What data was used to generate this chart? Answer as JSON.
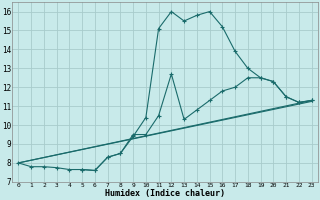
{
  "xlabel": "Humidex (Indice chaleur)",
  "background_color": "#c8eaea",
  "grid_color": "#a8cccc",
  "line_color": "#1a6b6b",
  "xlim": [
    -0.5,
    23.5
  ],
  "ylim": [
    7,
    16.5
  ],
  "xtick_vals": [
    0,
    1,
    2,
    3,
    4,
    5,
    6,
    7,
    8,
    9,
    10,
    11,
    12,
    13,
    14,
    15,
    16,
    17,
    18,
    19,
    20,
    21,
    22,
    23
  ],
  "ytick_vals": [
    7,
    8,
    9,
    10,
    11,
    12,
    13,
    14,
    15,
    16
  ],
  "curve1_x": [
    0,
    1,
    2,
    3,
    4,
    5,
    6,
    7,
    8,
    9,
    10,
    11,
    12,
    13,
    14,
    15,
    16,
    17,
    18,
    19,
    20,
    21,
    22,
    23
  ],
  "curve1_y": [
    8.0,
    7.8,
    7.8,
    7.75,
    7.65,
    7.65,
    7.6,
    8.3,
    8.5,
    9.4,
    10.4,
    15.1,
    16.0,
    15.5,
    15.8,
    16.0,
    15.2,
    13.9,
    13.0,
    12.5,
    12.3,
    11.5,
    11.2,
    11.3
  ],
  "curve2_x": [
    5,
    6,
    7,
    8,
    9,
    10,
    11,
    12,
    13,
    14,
    15,
    16,
    17,
    18,
    19,
    20,
    21,
    22,
    23
  ],
  "curve2_y": [
    7.65,
    7.6,
    8.3,
    8.5,
    9.5,
    9.5,
    10.5,
    12.7,
    10.3,
    10.8,
    11.3,
    11.8,
    12.0,
    12.5,
    12.5,
    12.3,
    11.5,
    11.2,
    11.3
  ],
  "line3_x": [
    0,
    23
  ],
  "line3_y": [
    8.0,
    11.3
  ],
  "line4_x": [
    0,
    23
  ],
  "line4_y": [
    8.0,
    11.25
  ]
}
